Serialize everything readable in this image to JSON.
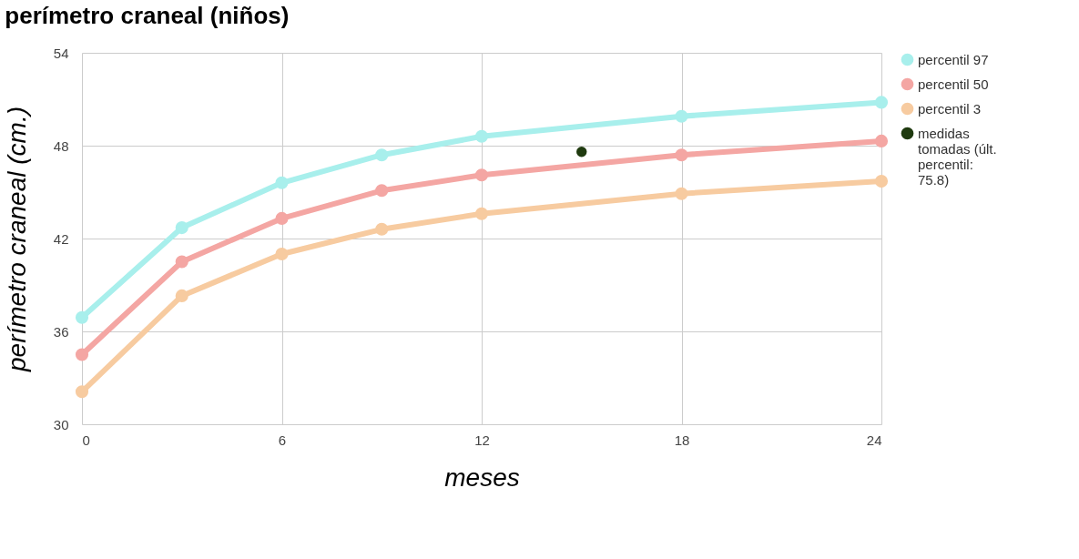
{
  "chart_data": {
    "type": "line",
    "title": "perímetro craneal (niños)",
    "xlabel": "meses",
    "ylabel": "perímetro craneal (cm.)",
    "xlim": [
      0,
      24
    ],
    "xticks": [
      0,
      6,
      12,
      18,
      24
    ],
    "ylim": [
      30,
      54
    ],
    "yticks": [
      30,
      36,
      42,
      48,
      54
    ],
    "grid": true,
    "legend": "right",
    "marker": "circle",
    "line_style": "solid",
    "series": [
      {
        "name": "percentil 97",
        "color": "#a8efec",
        "x": [
          0,
          3,
          6,
          9,
          12,
          18,
          24
        ],
        "values": [
          36.9,
          42.7,
          45.6,
          47.4,
          48.6,
          49.9,
          50.8
        ]
      },
      {
        "name": "percentil 50",
        "color": "#f4a6a3",
        "x": [
          0,
          3,
          6,
          9,
          12,
          18,
          24
        ],
        "values": [
          34.5,
          40.5,
          43.3,
          45.1,
          46.1,
          47.4,
          48.3
        ]
      },
      {
        "name": "percentil 3",
        "color": "#f7cba0",
        "x": [
          0,
          3,
          6,
          9,
          12,
          18,
          24
        ],
        "values": [
          32.1,
          38.3,
          41.0,
          42.6,
          43.6,
          44.9,
          45.7
        ]
      },
      {
        "name": "medidas tomadas (últ. percentil: 75.8)",
        "color": "#1f3a0f",
        "type": "scatter",
        "x": [
          15
        ],
        "values": [
          47.6
        ]
      }
    ]
  }
}
